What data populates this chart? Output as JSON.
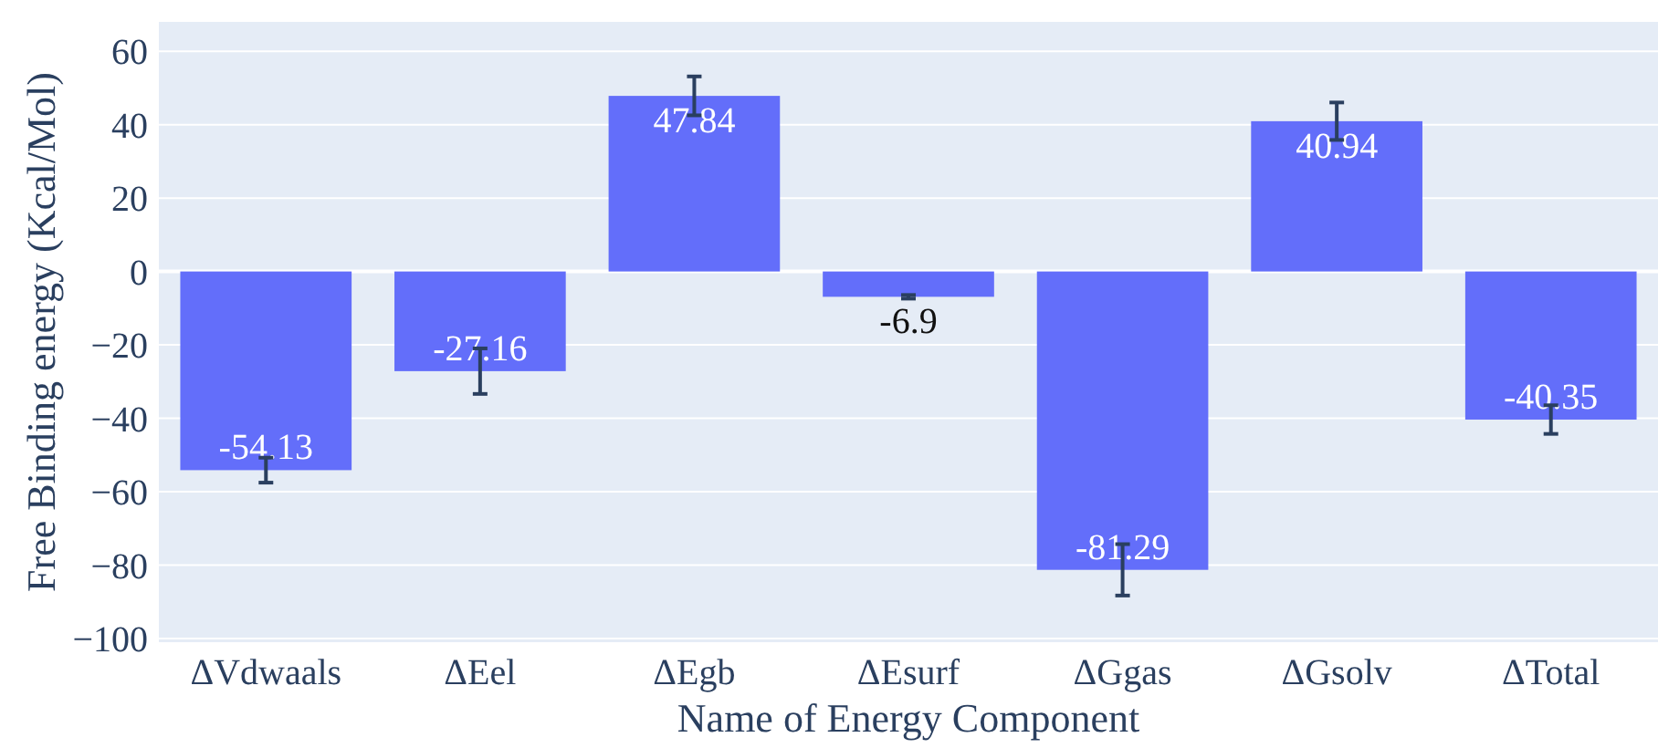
{
  "chart_data": {
    "type": "bar",
    "xlabel": "Name of Energy Component",
    "ylabel": "Free Binding energy (Kcal/Mol)",
    "categories": [
      "ΔVdwaals",
      "ΔEel",
      "ΔEgb",
      "ΔEsurf",
      "ΔGgas",
      "ΔGsolv",
      "ΔTotal"
    ],
    "values": [
      -54.13,
      -27.16,
      47.84,
      -6.9,
      -81.29,
      40.94,
      -40.35
    ],
    "errors": [
      3.4,
      6.2,
      5.3,
      0.5,
      7,
      5.1,
      3.9
    ],
    "color": "#636efa",
    "data_labels": true,
    "grid": "y",
    "ylim": [
      -101,
      68
    ],
    "yticks": [
      {
        "value": -100,
        "label": "−100"
      },
      {
        "value": -80,
        "label": "−80"
      },
      {
        "value": -60,
        "label": "−60"
      },
      {
        "value": -40,
        "label": "−40"
      },
      {
        "value": -20,
        "label": "−20"
      },
      0,
      20,
      40,
      60
    ]
  }
}
